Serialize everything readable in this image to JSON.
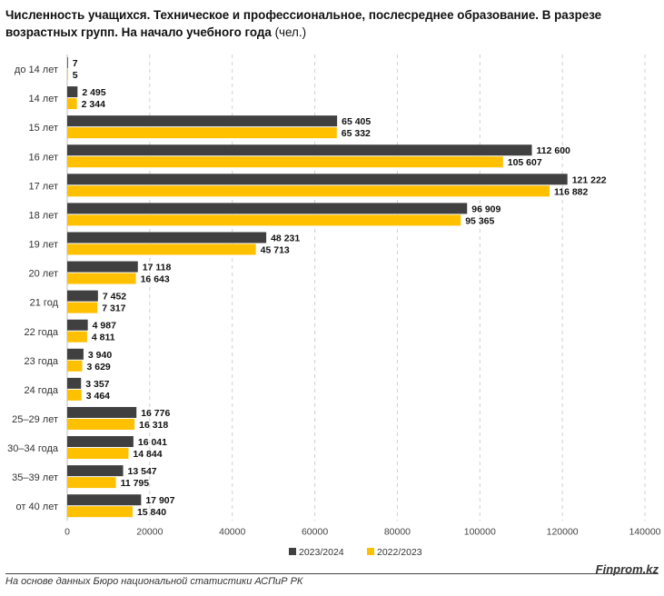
{
  "chart_data": {
    "type": "bar",
    "orientation": "horizontal",
    "title": "Численность учащихся. Техническое и профессиональное, послесреднее образование. В разрезе возрастных групп. На начало учебного года",
    "title_unit": "(чел.)",
    "categories": [
      "до 14 лет",
      "14 лет",
      "15 лет",
      "16 лет",
      "17 лет",
      "18 лет",
      "19 лет",
      "20 лет",
      "21 год",
      "22 года",
      "23 года",
      "24 года",
      "25–29 лет",
      "30–34 года",
      "35–39 лет",
      "от 40 лет"
    ],
    "series": [
      {
        "name": "2023/2024",
        "color": "#404040",
        "values": [
          7,
          2495,
          65405,
          112600,
          121222,
          96909,
          48231,
          17118,
          7452,
          4987,
          3940,
          3357,
          16776,
          16041,
          13547,
          17907
        ],
        "labels": [
          "7",
          "2 495",
          "65 405",
          "112 600",
          "121 222",
          "96 909",
          "48 231",
          "17 118",
          "7 452",
          "4 987",
          "3 940",
          "3 357",
          "16 776",
          "16 041",
          "13 547",
          "17 907"
        ]
      },
      {
        "name": "2022/2023",
        "color": "#FFC000",
        "values": [
          5,
          2344,
          65332,
          105607,
          116882,
          95365,
          45713,
          16643,
          7317,
          4811,
          3629,
          3464,
          16318,
          14844,
          11795,
          15840
        ],
        "labels": [
          "5",
          "2 344",
          "65 332",
          "105 607",
          "116 882",
          "95 365",
          "45 713",
          "16 643",
          "7 317",
          "4 811",
          "3 629",
          "3 464",
          "16 318",
          "14 844",
          "11 795",
          "15 840"
        ]
      }
    ],
    "xlim": [
      0,
      140000
    ],
    "xticks": [
      "0",
      "20000",
      "40000",
      "60000",
      "80000",
      "100000",
      "120000",
      "140000"
    ],
    "grid": true,
    "legend": "bottom"
  },
  "footer": {
    "source": "На основе данных Бюро национальной статистики АСПиР РК",
    "brand": "Finprom.kz"
  }
}
